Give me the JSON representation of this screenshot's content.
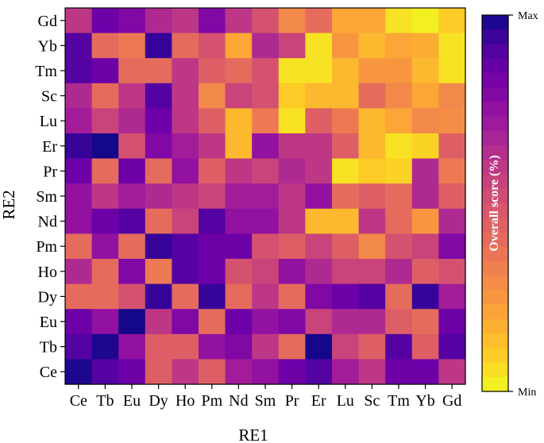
{
  "chart_data": {
    "type": "heatmap",
    "xlabel": "RE1",
    "ylabel": "RE2",
    "x_categories": [
      "Ce",
      "Tb",
      "Eu",
      "Dy",
      "Ho",
      "Pm",
      "Nd",
      "Sm",
      "Pr",
      "Er",
      "Lu",
      "Sc",
      "Tm",
      "Yb",
      "Gd"
    ],
    "y_categories": [
      "Gd",
      "Yb",
      "Tm",
      "Sc",
      "Lu",
      "Er",
      "Pr",
      "Sm",
      "Nd",
      "Pm",
      "Ho",
      "Dy",
      "Eu",
      "Tb",
      "Ce"
    ],
    "value_scale": "normalized 0 (Min) to 1 (Max)",
    "values": [
      [
        0.6,
        0.85,
        0.8,
        0.65,
        0.6,
        0.8,
        0.6,
        0.5,
        0.3,
        0.4,
        0.2,
        0.2,
        0.05,
        0.02,
        0.1
      ],
      [
        0.9,
        0.4,
        0.35,
        0.95,
        0.4,
        0.5,
        0.2,
        0.65,
        0.55,
        0.05,
        0.25,
        0.15,
        0.2,
        0.18,
        0.05
      ],
      [
        0.9,
        0.85,
        0.4,
        0.4,
        0.6,
        0.45,
        0.4,
        0.5,
        0.05,
        0.05,
        0.15,
        0.25,
        0.25,
        0.15,
        0.05
      ],
      [
        0.65,
        0.4,
        0.6,
        0.9,
        0.6,
        0.3,
        0.55,
        0.5,
        0.1,
        0.15,
        0.15,
        0.4,
        0.3,
        0.2,
        0.3
      ],
      [
        0.7,
        0.55,
        0.65,
        0.85,
        0.6,
        0.45,
        0.15,
        0.35,
        0.05,
        0.45,
        0.35,
        0.15,
        0.2,
        0.3,
        0.28
      ],
      [
        0.95,
        0.99,
        0.5,
        0.8,
        0.7,
        0.6,
        0.15,
        0.75,
        0.6,
        0.6,
        0.45,
        0.15,
        0.05,
        0.08,
        0.45
      ],
      [
        0.85,
        0.4,
        0.85,
        0.4,
        0.75,
        0.45,
        0.6,
        0.55,
        0.65,
        0.6,
        0.05,
        0.1,
        0.08,
        0.65,
        0.35
      ],
      [
        0.75,
        0.6,
        0.7,
        0.65,
        0.6,
        0.55,
        0.7,
        0.7,
        0.6,
        0.75,
        0.4,
        0.45,
        0.4,
        0.65,
        0.45
      ],
      [
        0.75,
        0.85,
        0.9,
        0.4,
        0.55,
        0.9,
        0.75,
        0.75,
        0.6,
        0.15,
        0.15,
        0.6,
        0.4,
        0.25,
        0.65
      ],
      [
        0.4,
        0.75,
        0.4,
        0.95,
        0.9,
        0.85,
        0.85,
        0.5,
        0.45,
        0.55,
        0.45,
        0.3,
        0.5,
        0.55,
        0.8
      ],
      [
        0.65,
        0.4,
        0.8,
        0.35,
        0.9,
        0.85,
        0.5,
        0.55,
        0.75,
        0.65,
        0.55,
        0.55,
        0.65,
        0.45,
        0.5
      ],
      [
        0.4,
        0.4,
        0.5,
        0.95,
        0.4,
        0.95,
        0.4,
        0.6,
        0.4,
        0.8,
        0.85,
        0.9,
        0.4,
        0.95,
        0.7
      ],
      [
        0.85,
        0.75,
        0.99,
        0.6,
        0.8,
        0.4,
        0.85,
        0.75,
        0.8,
        0.55,
        0.65,
        0.65,
        0.45,
        0.4,
        0.85
      ],
      [
        0.9,
        0.98,
        0.75,
        0.45,
        0.45,
        0.75,
        0.8,
        0.6,
        0.4,
        0.99,
        0.55,
        0.45,
        0.9,
        0.45,
        0.9
      ],
      [
        0.98,
        0.9,
        0.85,
        0.45,
        0.6,
        0.45,
        0.7,
        0.75,
        0.85,
        0.9,
        0.7,
        0.6,
        0.85,
        0.85,
        0.6
      ]
    ],
    "colormap": "plasma_r",
    "colorbar": {
      "label": "Overall score (%)",
      "max_label": "Max",
      "min_label": "Min",
      "discrete_steps": 26
    },
    "grid": false
  }
}
